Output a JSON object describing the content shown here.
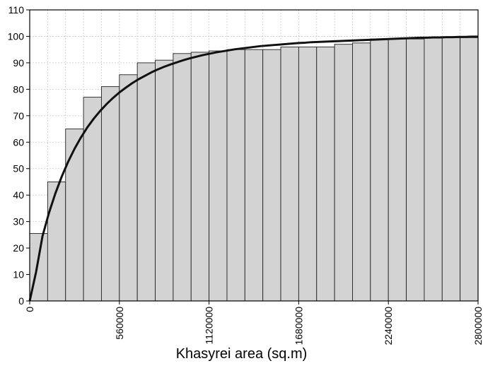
{
  "chart_data": {
    "type": "bar",
    "title": "",
    "xlabel": "Khasyrei area (sq.m)",
    "ylabel": "",
    "xlim": [
      0,
      2800000
    ],
    "ylim": [
      0,
      110
    ],
    "bin_width": 112000,
    "x_ticks": [
      "0",
      "560000",
      "1120000",
      "1680000",
      "2240000",
      "2800000"
    ],
    "y_ticks": [
      "0",
      "10",
      "20",
      "30",
      "40",
      "50",
      "60",
      "70",
      "80",
      "90",
      "100",
      "110"
    ],
    "grid": true,
    "bar_color": "#d3d3d3",
    "line_color": "#111111",
    "bins": [
      {
        "x0": 0,
        "x1": 112000,
        "value": 25.5
      },
      {
        "x0": 112000,
        "x1": 224000,
        "value": 45
      },
      {
        "x0": 224000,
        "x1": 336000,
        "value": 65
      },
      {
        "x0": 336000,
        "x1": 448000,
        "value": 77
      },
      {
        "x0": 448000,
        "x1": 560000,
        "value": 81
      },
      {
        "x0": 560000,
        "x1": 672000,
        "value": 85.5
      },
      {
        "x0": 672000,
        "x1": 784000,
        "value": 90
      },
      {
        "x0": 784000,
        "x1": 896000,
        "value": 91
      },
      {
        "x0": 896000,
        "x1": 1008000,
        "value": 93.5
      },
      {
        "x0": 1008000,
        "x1": 1120000,
        "value": 94
      },
      {
        "x0": 1120000,
        "x1": 1232000,
        "value": 94.5
      },
      {
        "x0": 1232000,
        "x1": 1344000,
        "value": 95
      },
      {
        "x0": 1344000,
        "x1": 1456000,
        "value": 95
      },
      {
        "x0": 1456000,
        "x1": 1568000,
        "value": 95
      },
      {
        "x0": 1568000,
        "x1": 1680000,
        "value": 96
      },
      {
        "x0": 1680000,
        "x1": 1792000,
        "value": 96
      },
      {
        "x0": 1792000,
        "x1": 1904000,
        "value": 96
      },
      {
        "x0": 1904000,
        "x1": 2016000,
        "value": 97
      },
      {
        "x0": 2016000,
        "x1": 2128000,
        "value": 97.5
      },
      {
        "x0": 2128000,
        "x1": 2240000,
        "value": 99
      },
      {
        "x0": 2240000,
        "x1": 2352000,
        "value": 99
      },
      {
        "x0": 2352000,
        "x1": 2464000,
        "value": 99
      },
      {
        "x0": 2464000,
        "x1": 2576000,
        "value": 99.5
      },
      {
        "x0": 2576000,
        "x1": 2688000,
        "value": 99.5
      },
      {
        "x0": 2688000,
        "x1": 2800000,
        "value": 99.5
      }
    ],
    "curve": {
      "x": [
        0,
        40000,
        80000,
        120000,
        160000,
        200000,
        240000,
        280000,
        320000,
        360000,
        400000,
        440000,
        480000,
        520000,
        560000,
        600000,
        640000,
        680000,
        720000,
        760000,
        800000,
        840000,
        880000,
        920000,
        960000,
        1000000,
        1040000,
        1080000,
        1120000,
        1160000,
        1200000,
        1240000,
        1280000,
        1320000,
        1360000,
        1400000,
        1440000,
        1480000,
        1520000,
        1560000,
        1600000,
        1640000,
        1680000,
        1720000,
        1760000,
        1800000,
        1840000,
        1880000,
        1920000,
        1960000,
        2000000,
        2040000,
        2080000,
        2120000,
        2160000,
        2200000,
        2240000,
        2280000,
        2320000,
        2360000,
        2400000,
        2440000,
        2480000,
        2520000,
        2560000,
        2600000,
        2640000,
        2680000,
        2720000,
        2760000,
        2800000
      ],
      "y": [
        0,
        11,
        24.5,
        33.2,
        40.6,
        47,
        52.6,
        57.5,
        61.8,
        65.6,
        68.9,
        71.8,
        74.4,
        76.7,
        78.8,
        80.6,
        82.3,
        83.8,
        85.1,
        86.4,
        87.5,
        88.5,
        89.4,
        90.2,
        91,
        91.7,
        92.3,
        92.9,
        93.4,
        93.9,
        94.3,
        94.7,
        95.1,
        95.4,
        95.7,
        96,
        96.3,
        96.5,
        96.7,
        96.9,
        97.1,
        97.3,
        97.5,
        97.6,
        97.8,
        97.9,
        98,
        98.1,
        98.2,
        98.3,
        98.4,
        98.5,
        98.6,
        98.7,
        98.8,
        98.9,
        99,
        99.1,
        99.2,
        99.3,
        99.4,
        99.5,
        99.5,
        99.6,
        99.6,
        99.7,
        99.7,
        99.8,
        99.8,
        99.9,
        99.9
      ]
    }
  }
}
